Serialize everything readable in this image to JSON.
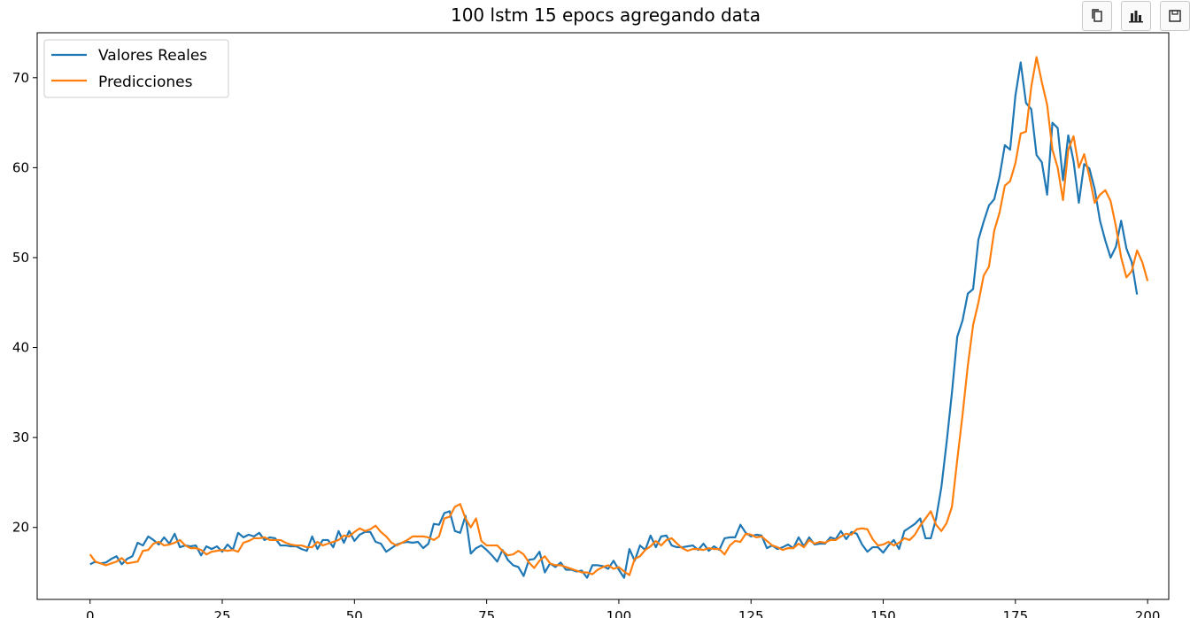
{
  "toolbar": {
    "buttons": [
      {
        "name": "copy-button",
        "icon": "copy-icon"
      },
      {
        "name": "chart-button",
        "icon": "bar-chart-icon"
      },
      {
        "name": "save-button",
        "icon": "floppy-disk-icon"
      }
    ]
  },
  "chart_data": {
    "type": "line",
    "title": "100 lstm 15 epocs agregando data",
    "xlabel": "",
    "ylabel": "",
    "xlim": [
      -10,
      204
    ],
    "ylim": [
      12,
      75
    ],
    "x_ticks": [
      0,
      25,
      50,
      75,
      100,
      125,
      150,
      175,
      200
    ],
    "y_ticks": [
      20,
      30,
      40,
      50,
      60,
      70
    ],
    "grid": false,
    "legend_position": "top-left",
    "series": [
      {
        "name": "Valores Reales",
        "color": "#1f77b4",
        "values": [
          15.9,
          16.2,
          16.0,
          16.1,
          16.5,
          16.8,
          15.9,
          16.5,
          16.8,
          18.3,
          18.0,
          19.0,
          18.6,
          18.1,
          18.9,
          18.2,
          19.3,
          17.8,
          18.0,
          17.9,
          18.0,
          16.9,
          17.9,
          17.6,
          17.9,
          17.3,
          18.1,
          17.5,
          19.4,
          18.9,
          19.2,
          19.0,
          19.4,
          18.6,
          18.9,
          18.8,
          18.0,
          18.0,
          17.9,
          17.9,
          17.6,
          17.4,
          19.0,
          17.6,
          18.6,
          18.6,
          17.8,
          19.6,
          18.3,
          19.6,
          18.5,
          19.2,
          19.5,
          19.5,
          18.4,
          18.2,
          17.3,
          17.7,
          18.1,
          18.3,
          18.4,
          18.3,
          18.4,
          17.7,
          18.2,
          20.4,
          20.3,
          21.6,
          21.8,
          19.6,
          19.4,
          21.3,
          17.1,
          17.7,
          18.0,
          17.5,
          16.9,
          16.2,
          17.5,
          16.4,
          15.8,
          15.6,
          14.6,
          16.4,
          16.5,
          17.3,
          15.0,
          16.0,
          15.6,
          16.1,
          15.3,
          15.3,
          15.1,
          15.2,
          14.4,
          15.8,
          15.8,
          15.7,
          15.4,
          16.3,
          15.3,
          14.4,
          17.6,
          16.3,
          18.0,
          17.5,
          19.1,
          17.8,
          19.0,
          19.1,
          18.0,
          17.8,
          17.8,
          17.9,
          18.0,
          17.5,
          18.2,
          17.4,
          17.9,
          17.5,
          18.8,
          18.9,
          18.9,
          20.3,
          19.4,
          19.0,
          19.2,
          19.1,
          17.7,
          18.0,
          17.6,
          17.8,
          18.1,
          17.7,
          18.9,
          17.9,
          18.9,
          18.1,
          18.2,
          18.2,
          18.9,
          18.7,
          19.6,
          18.7,
          19.5,
          19.3,
          18.1,
          17.3,
          17.8,
          17.8,
          17.2,
          18.0,
          18.6,
          17.6,
          19.6,
          20.0,
          20.4,
          21.0,
          18.8,
          18.8,
          21.0,
          24.5,
          29.5,
          35.0,
          41.2,
          43.0,
          46.0,
          46.5,
          52.0,
          54.0,
          55.8,
          56.5,
          59.0,
          62.5,
          62.0,
          68.0,
          71.7,
          67.2,
          66.5,
          61.4,
          60.6,
          57.0,
          65.0,
          64.4,
          58.6,
          63.6,
          60.7,
          56.1,
          60.4,
          59.9,
          57.6,
          54.1,
          51.9,
          50.0,
          51.2,
          54.1,
          51.0,
          49.5,
          45.9
        ]
      },
      {
        "name": "Predicciones",
        "color": "#ff7f0e",
        "values": [
          17.0,
          16.2,
          16.0,
          15.8,
          16.0,
          16.2,
          16.6,
          16.0,
          16.1,
          16.2,
          17.4,
          17.5,
          18.2,
          18.4,
          18.0,
          18.1,
          18.3,
          18.6,
          18.0,
          17.7,
          17.7,
          17.5,
          17.0,
          17.3,
          17.4,
          17.5,
          17.4,
          17.5,
          17.3,
          18.3,
          18.5,
          18.8,
          18.8,
          18.9,
          18.6,
          18.6,
          18.6,
          18.3,
          18.1,
          18.0,
          18.0,
          17.8,
          17.8,
          18.4,
          18.0,
          18.2,
          18.4,
          18.6,
          19.1,
          19.0,
          19.5,
          19.9,
          19.6,
          19.8,
          20.2,
          19.5,
          19.0,
          18.3,
          18.0,
          18.3,
          18.6,
          19.0,
          19.0,
          19.0,
          18.9,
          18.6,
          19.0,
          21.0,
          21.2,
          22.3,
          22.6,
          21.0,
          20.0,
          21.0,
          18.5,
          18.0,
          18.0,
          18.0,
          17.4,
          16.9,
          17.0,
          17.4,
          17.0,
          16.1,
          15.5,
          16.3,
          16.8,
          16.0,
          15.8,
          15.8,
          15.6,
          15.4,
          15.2,
          15.0,
          15.0,
          14.8,
          15.3,
          15.6,
          15.8,
          15.4,
          15.6,
          15.1,
          14.7,
          16.5,
          16.8,
          17.5,
          17.9,
          18.5,
          18.0,
          18.6,
          18.8,
          18.2,
          17.7,
          17.4,
          17.6,
          17.6,
          17.5,
          17.7,
          17.6,
          17.6,
          17.0,
          18.0,
          18.5,
          18.4,
          19.3,
          19.2,
          18.9,
          19.0,
          18.5,
          18.0,
          17.8,
          17.5,
          17.7,
          17.7,
          18.2,
          17.8,
          18.6,
          18.2,
          18.4,
          18.3,
          18.6,
          18.6,
          19.0,
          19.3,
          19.2,
          19.8,
          19.9,
          19.8,
          18.7,
          18.0,
          18.1,
          18.4,
          18.0,
          18.3,
          18.8,
          18.6,
          19.2,
          20.2,
          21.0,
          21.8,
          20.3,
          19.6,
          20.5,
          22.3,
          27.5,
          32.5,
          38.0,
          42.5,
          45.0,
          48.0,
          49.0,
          53.0,
          55.0,
          58.0,
          58.5,
          60.5,
          63.8,
          64.0,
          69.0,
          72.3,
          69.5,
          67.0,
          62.0,
          60.0,
          56.4,
          62.0,
          63.5,
          60.0,
          61.5,
          59.0,
          56.1,
          57.0,
          57.5,
          56.3,
          53.5,
          50.0,
          47.8,
          48.5,
          50.8,
          49.5,
          47.4
        ]
      }
    ]
  }
}
